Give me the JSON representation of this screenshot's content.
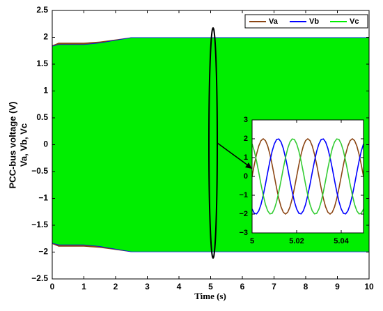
{
  "chart_data": [
    {
      "type": "band",
      "x_label": "Time (s)",
      "y_label": [
        "PCC-bus voltage (V)",
        "Va, Vb, Vc"
      ],
      "x": [
        0,
        0.2,
        1.0,
        1.5,
        2.0,
        2.5,
        10
      ],
      "series": [
        {
          "name": "Va",
          "color": "#8b4513",
          "upper": [
            1.85,
            1.9,
            1.9,
            1.92,
            1.96,
            2,
            2
          ],
          "lower": [
            -1.85,
            -1.9,
            -1.9,
            -1.92,
            -1.96,
            -2,
            -2
          ]
        },
        {
          "name": "Vb",
          "color": "#0000ff",
          "upper": [
            1.84,
            1.87,
            1.87,
            1.9,
            1.95,
            2,
            2
          ],
          "lower": [
            -1.84,
            -1.87,
            -1.87,
            -1.9,
            -1.95,
            -2,
            -2
          ]
        },
        {
          "name": "Vc",
          "color": "#00ee00",
          "upper": [
            1.83,
            1.86,
            1.86,
            1.89,
            1.94,
            1.99,
            1.99
          ],
          "lower": [
            -1.83,
            -1.86,
            -1.86,
            -1.89,
            -1.94,
            -1.99,
            -1.99
          ]
        }
      ],
      "xlim": [
        0,
        10
      ],
      "xticks": [
        0,
        1,
        2,
        3,
        4,
        5,
        6,
        7,
        8,
        9,
        10
      ],
      "ylim": [
        -2.5,
        2.5
      ],
      "yticks": [
        {
          "value": -2.5,
          "label": "−2.5"
        },
        {
          "value": -2,
          "label": "−2"
        },
        {
          "value": -1.5,
          "label": "−1.5"
        },
        {
          "value": -1,
          "label": "−1"
        },
        {
          "value": -0.5,
          "label": "−0.5"
        },
        0,
        0.5,
        1,
        1.5,
        2,
        2.5
      ],
      "legend": "upper right"
    },
    {
      "type": "line",
      "x": [
        5,
        5.001,
        5.002,
        5.003,
        5.004,
        5.005,
        5.006,
        5.007,
        5.008,
        5.009,
        5.01,
        5.011,
        5.012,
        5.013,
        5.014,
        5.015,
        5.016,
        5.017,
        5.018,
        5.019,
        5.02,
        5.021,
        5.022,
        5.023,
        5.024,
        5.025,
        5.026,
        5.027,
        5.028,
        5.029,
        5.03,
        5.031,
        5.032,
        5.033,
        5.034,
        5.035,
        5.036,
        5.037,
        5.038,
        5.039,
        5.04,
        5.041,
        5.042,
        5.043,
        5.044,
        5.045,
        5.046,
        5.047,
        5.048,
        5.049,
        5.05
      ],
      "series": [
        {
          "color": "#8b4513",
          "values": [
            0,
            0.62,
            1.18,
            1.62,
            1.9,
            2,
            1.9,
            1.62,
            1.18,
            0.62,
            0,
            -0.62,
            -1.18,
            -1.62,
            -1.9,
            -2,
            -1.9,
            -1.62,
            -1.18,
            -0.62,
            0,
            0.62,
            1.18,
            1.62,
            1.9,
            2,
            1.9,
            1.62,
            1.18,
            0.62,
            0,
            -0.62,
            -1.18,
            -1.62,
            -1.9,
            -2,
            -1.9,
            -1.62,
            -1.18,
            -0.62,
            0,
            0.62,
            1.18,
            1.62,
            1.9,
            2,
            1.9,
            1.62,
            1.18,
            0.62,
            0
          ]
        },
        {
          "color": "#0000ff",
          "values": [
            -1.73,
            -1.96,
            -1.99,
            -1.83,
            -1.49,
            -1,
            -0.42,
            0.21,
            0.81,
            1.34,
            1.73,
            1.96,
            1.99,
            1.83,
            1.49,
            1,
            0.42,
            -0.21,
            -0.81,
            -1.34,
            -1.73,
            -1.96,
            -1.99,
            -1.83,
            -1.49,
            -1,
            -0.42,
            0.21,
            0.81,
            1.34,
            1.73,
            1.96,
            1.99,
            1.83,
            1.49,
            1,
            0.42,
            -0.21,
            -0.81,
            -1.34,
            -1.73,
            -1.96,
            -1.99,
            -1.83,
            -1.49,
            -1,
            -0.42,
            0.21,
            0.81,
            1.34,
            1.73
          ]
        },
        {
          "color": "#33cc33",
          "values": [
            1.73,
            1.34,
            0.81,
            0.21,
            -0.42,
            -1,
            -1.49,
            -1.83,
            -1.99,
            -1.96,
            -1.73,
            -1.34,
            -0.81,
            -0.21,
            0.42,
            1,
            1.49,
            1.83,
            1.99,
            1.96,
            1.73,
            1.34,
            0.81,
            0.21,
            -0.42,
            -1,
            -1.49,
            -1.83,
            -1.99,
            -1.96,
            -1.73,
            -1.34,
            -0.81,
            -0.21,
            0.42,
            1,
            1.49,
            1.83,
            1.99,
            1.96,
            1.73,
            1.34,
            0.81,
            0.21,
            -0.42,
            -1,
            -1.49,
            -1.83,
            -1.99,
            -1.96,
            -1.73
          ]
        }
      ],
      "xlim": [
        5,
        5.05
      ],
      "xticks": [
        5,
        5.02,
        5.04
      ],
      "ylim": [
        -3,
        3
      ],
      "yticks": [
        {
          "value": -3,
          "label": "−3"
        },
        {
          "value": -2,
          "label": "−2"
        },
        {
          "value": -1,
          "label": "−1"
        },
        0,
        1,
        2,
        3
      ]
    }
  ]
}
